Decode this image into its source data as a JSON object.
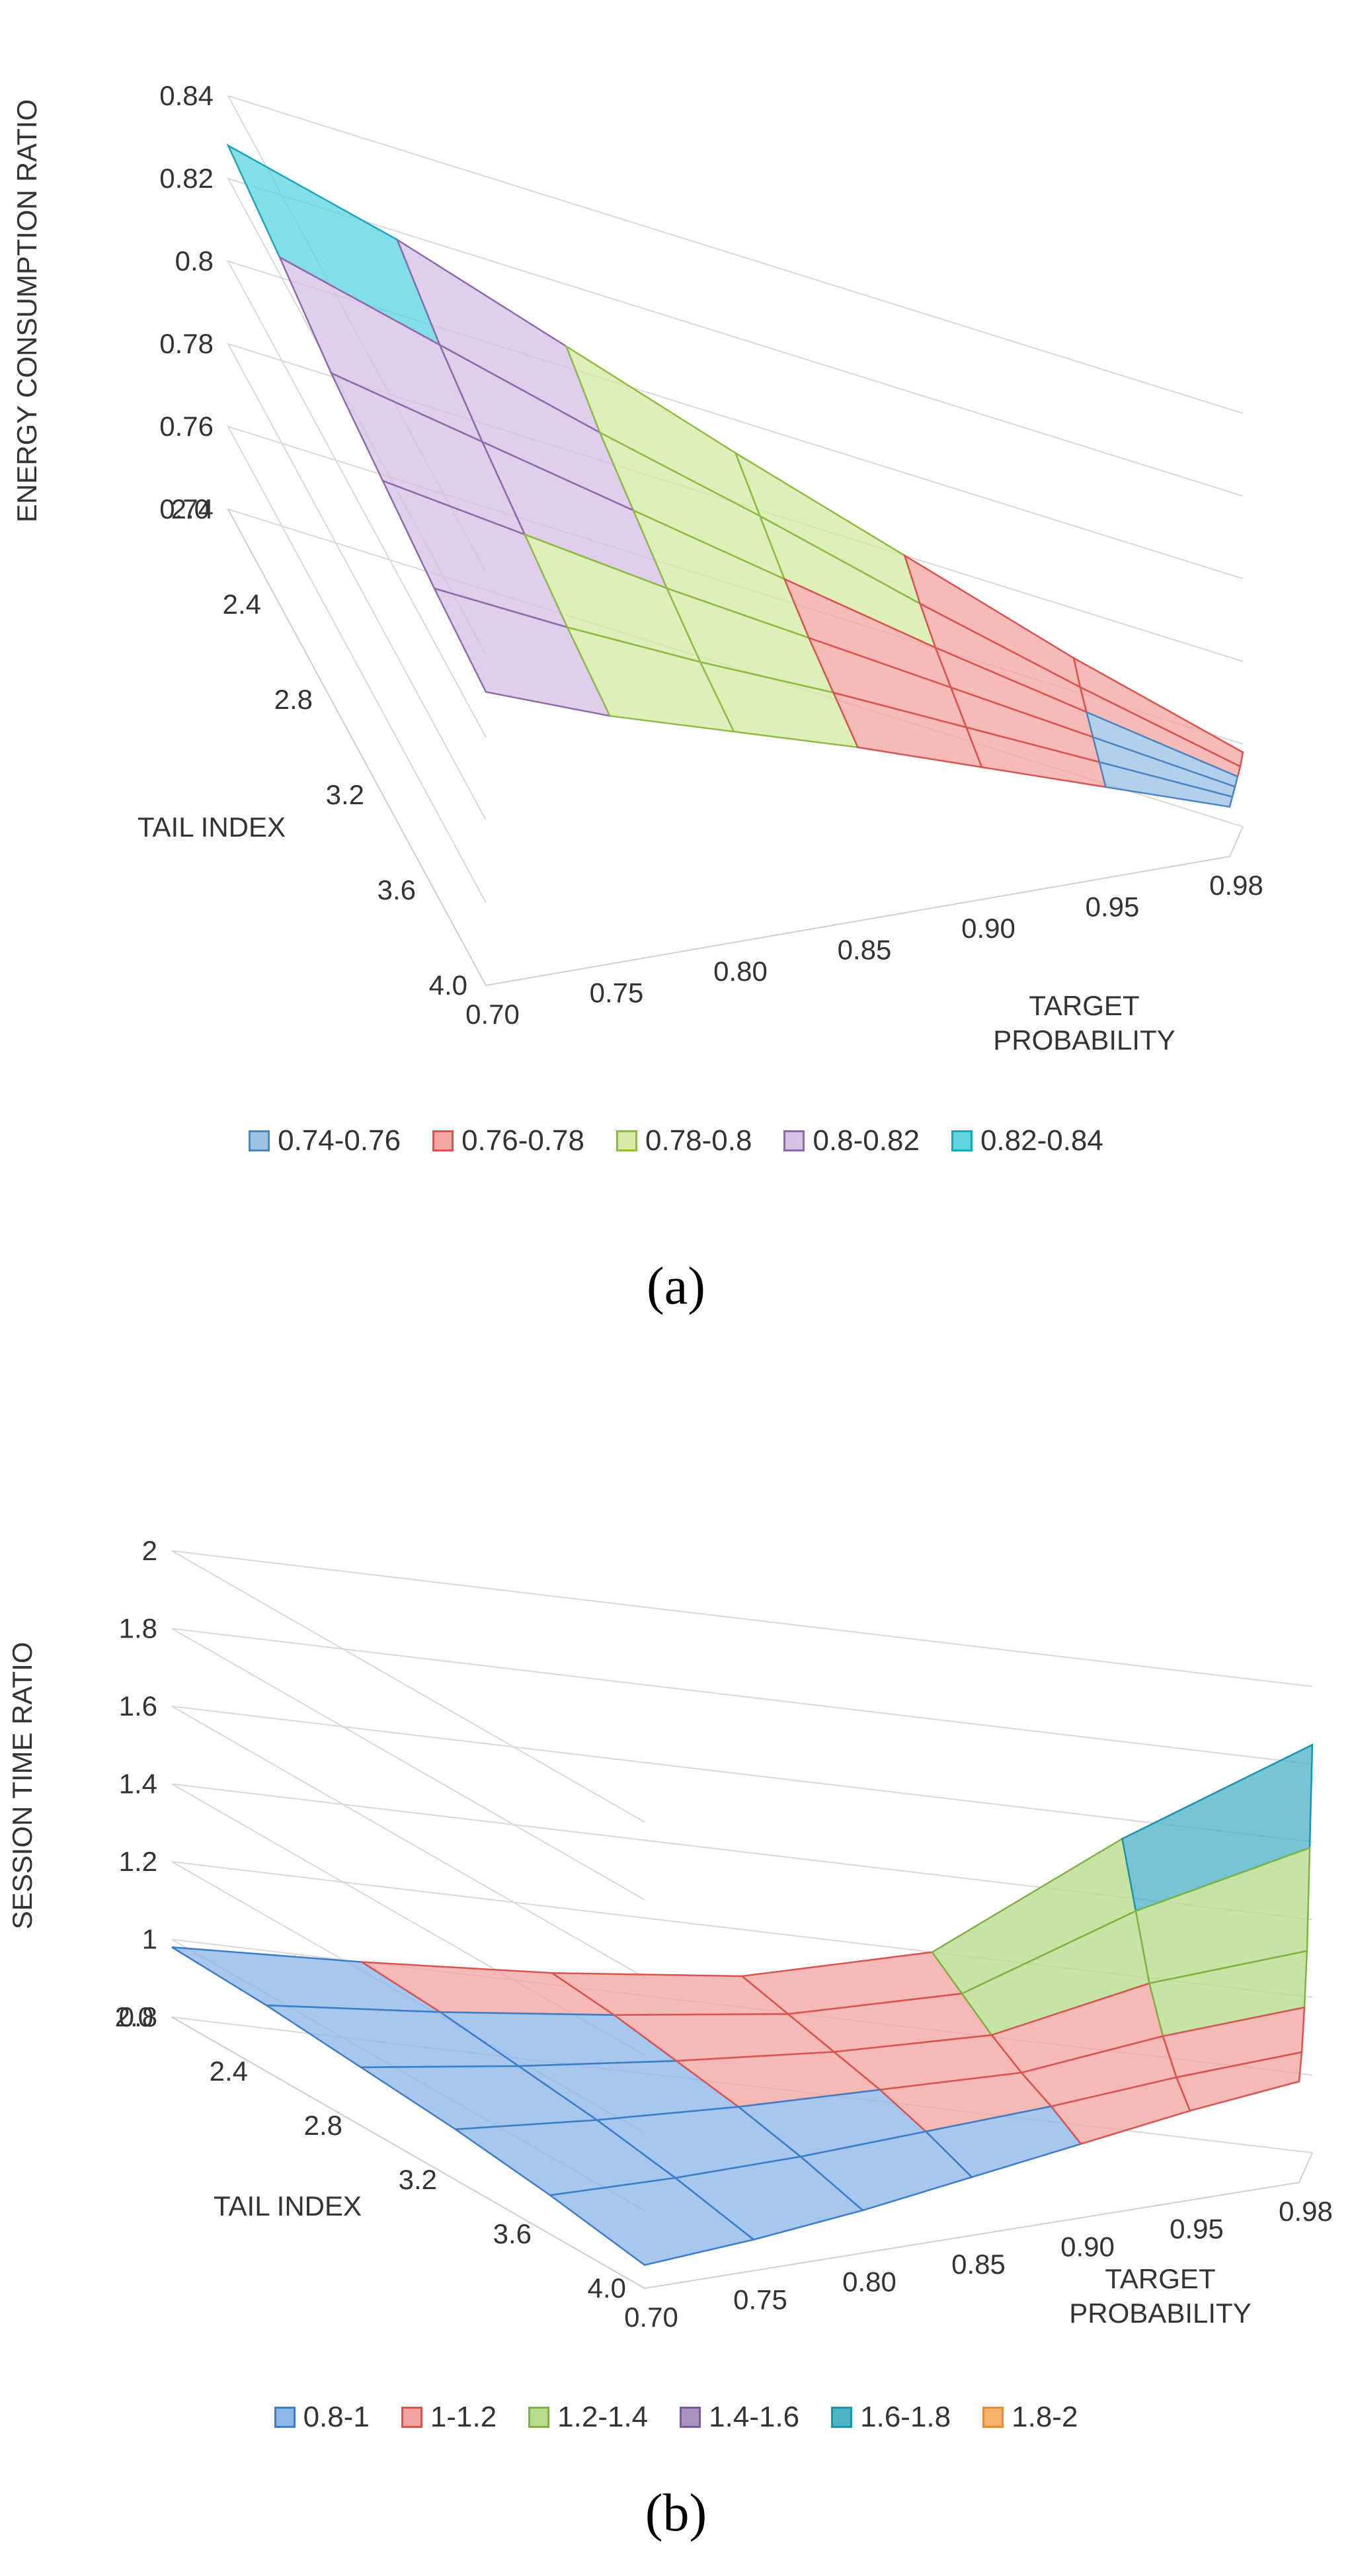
{
  "chart_data": [
    {
      "type": "surface",
      "caption": "(a)",
      "zlabel": "ENERGY CONSUMPTION RATIO",
      "ylabel": "TAIL INDEX",
      "xlabel": "TARGET PROBABILITY",
      "z_ticks": [
        "0.74",
        "0.76",
        "0.78",
        "0.8",
        "0.82",
        "0.84"
      ],
      "zlim": [
        0.74,
        0.84
      ],
      "tail_index_ticks": [
        "2.0",
        "2.4",
        "2.8",
        "3.2",
        "3.6",
        "4.0"
      ],
      "target_probability_ticks": [
        "0.70",
        "0.75",
        "0.80",
        "0.85",
        "0.90",
        "0.95",
        "0.98"
      ],
      "tail_index": [
        2.0,
        2.4,
        2.8,
        3.2,
        3.6,
        4.0
      ],
      "target_probability": [
        0.7,
        0.75,
        0.8,
        0.85,
        0.9,
        0.95,
        0.98
      ],
      "z": [
        [
          0.828,
          0.818,
          0.805,
          0.792,
          0.78,
          0.768,
          0.758
        ],
        [
          0.824,
          0.812,
          0.8,
          0.789,
          0.777,
          0.766,
          0.756
        ],
        [
          0.819,
          0.808,
          0.797,
          0.786,
          0.775,
          0.765,
          0.755
        ],
        [
          0.816,
          0.805,
          0.794,
          0.784,
          0.774,
          0.764,
          0.754
        ],
        [
          0.813,
          0.802,
          0.792,
          0.783,
          0.773,
          0.763,
          0.753
        ],
        [
          0.811,
          0.8,
          0.791,
          0.782,
          0.772,
          0.762,
          0.752
        ]
      ],
      "bands": [
        {
          "label": "0.74-0.76",
          "color": "#9cc3e6",
          "stroke": "#4a86c5"
        },
        {
          "label": "0.76-0.78",
          "color": "#f4a6a3",
          "stroke": "#d9534f"
        },
        {
          "label": "0.78-0.8",
          "color": "#d6eaa5",
          "stroke": "#8dbb44"
        },
        {
          "label": "0.8-0.82",
          "color": "#d6c2e6",
          "stroke": "#8e6aab"
        },
        {
          "label": "0.82-0.84",
          "color": "#5fd5e3",
          "stroke": "#1ba6b9"
        }
      ]
    },
    {
      "type": "surface",
      "caption": "(b)",
      "zlabel": "SESSION TIME RATIO",
      "ylabel": "TAIL INDEX",
      "xlabel": "TARGET PROBABILITY",
      "z_ticks": [
        "0.8",
        "1",
        "1.2",
        "1.4",
        "1.6",
        "1.8",
        "2"
      ],
      "zlim": [
        0.8,
        2.0
      ],
      "tail_index_ticks": [
        "2.0",
        "2.4",
        "2.8",
        "3.2",
        "3.6",
        "4.0"
      ],
      "target_probability_ticks": [
        "0.70",
        "0.75",
        "0.80",
        "0.85",
        "0.90",
        "0.95",
        "0.98"
      ],
      "tail_index": [
        2.0,
        2.4,
        2.8,
        3.2,
        3.6,
        4.0
      ],
      "target_probability": [
        0.7,
        0.75,
        0.8,
        0.85,
        0.9,
        0.95,
        0.98
      ],
      "z": [
        [
          0.98,
          1.0,
          1.03,
          1.08,
          1.2,
          1.55,
          1.85
        ],
        [
          0.97,
          0.99,
          1.02,
          1.06,
          1.15,
          1.4,
          1.6
        ],
        [
          0.95,
          0.97,
          1.0,
          1.04,
          1.1,
          1.25,
          1.35
        ],
        [
          0.93,
          0.95,
          0.98,
          1.02,
          1.06,
          1.15,
          1.22
        ],
        [
          0.9,
          0.92,
          0.95,
          0.99,
          1.03,
          1.08,
          1.12
        ],
        [
          0.86,
          0.88,
          0.91,
          0.95,
          0.99,
          1.03,
          1.06
        ]
      ],
      "bands": [
        {
          "label": "0.8-1",
          "color": "#8fb7ea",
          "stroke": "#3b7dc9"
        },
        {
          "label": "1-1.2",
          "color": "#f2a5a2",
          "stroke": "#d9534f"
        },
        {
          "label": "1.2-1.4",
          "color": "#b9dd8c",
          "stroke": "#7fb241"
        },
        {
          "label": "1.4-1.6",
          "color": "#a892c0",
          "stroke": "#7a5c9d"
        },
        {
          "label": "1.6-1.8",
          "color": "#4fb3c8",
          "stroke": "#1994b0"
        },
        {
          "label": "1.8-2",
          "color": "#f7b26e",
          "stroke": "#ef8a2c"
        }
      ]
    }
  ]
}
